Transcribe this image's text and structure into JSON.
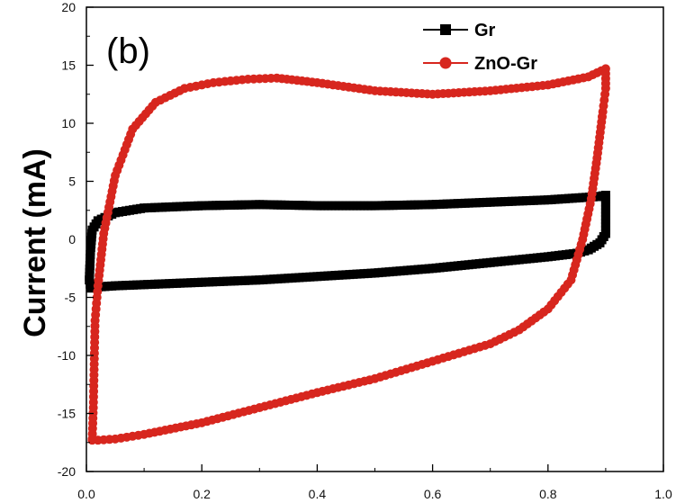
{
  "chart_data": {
    "type": "line",
    "panel_label": "(b)",
    "xlabel": "",
    "ylabel": "Current (mA)",
    "xlim": [
      0.0,
      1.0
    ],
    "ylim": [
      -20,
      20
    ],
    "x_ticks": [
      "0.0",
      "0.2",
      "0.4",
      "0.6",
      "0.8",
      "1.0"
    ],
    "y_ticks": [
      "-20",
      "-15",
      "-10",
      "-5",
      "0",
      "5",
      "10",
      "15",
      "20"
    ],
    "grid": false,
    "legend_position": "top-right",
    "series": [
      {
        "name": "Gr",
        "color": "#000000",
        "marker": "square",
        "x": [
          0.005,
          0.007,
          0.01,
          0.02,
          0.05,
          0.1,
          0.2,
          0.3,
          0.4,
          0.5,
          0.6,
          0.7,
          0.8,
          0.86,
          0.89,
          0.9,
          0.9,
          0.9,
          0.89,
          0.87,
          0.85,
          0.8,
          0.7,
          0.6,
          0.5,
          0.4,
          0.3,
          0.2,
          0.1,
          0.05,
          0.02,
          0.008,
          0.005
        ],
        "y": [
          -3.5,
          -1.0,
          0.8,
          1.6,
          2.3,
          2.7,
          2.9,
          3.0,
          2.9,
          2.9,
          3.0,
          3.2,
          3.4,
          3.6,
          3.7,
          3.8,
          2.0,
          0.5,
          -0.3,
          -0.9,
          -1.2,
          -1.5,
          -2.0,
          -2.5,
          -2.9,
          -3.2,
          -3.5,
          -3.7,
          -3.9,
          -4.0,
          -4.1,
          -4.2,
          -3.5
        ]
      },
      {
        "name": "ZnO-Gr",
        "color": "#d7261e",
        "marker": "circle",
        "x": [
          0.01,
          0.012,
          0.015,
          0.02,
          0.03,
          0.05,
          0.08,
          0.12,
          0.17,
          0.22,
          0.28,
          0.33,
          0.4,
          0.5,
          0.6,
          0.7,
          0.8,
          0.87,
          0.9,
          0.9,
          0.895,
          0.885,
          0.875,
          0.86,
          0.84,
          0.8,
          0.75,
          0.7,
          0.6,
          0.5,
          0.4,
          0.3,
          0.2,
          0.1,
          0.05,
          0.02,
          0.01,
          0.01
        ],
        "y": [
          -17.2,
          -14.5,
          -7.0,
          -4.0,
          0.5,
          5.5,
          9.5,
          11.8,
          13.0,
          13.5,
          13.8,
          13.9,
          13.5,
          12.8,
          12.5,
          12.8,
          13.3,
          14.0,
          14.7,
          13.0,
          11.0,
          7.0,
          3.5,
          0.0,
          -3.5,
          -6.0,
          -7.8,
          -9.0,
          -10.5,
          -12.0,
          -13.2,
          -14.5,
          -15.8,
          -16.8,
          -17.2,
          -17.3,
          -17.3,
          -17.2
        ]
      }
    ]
  }
}
